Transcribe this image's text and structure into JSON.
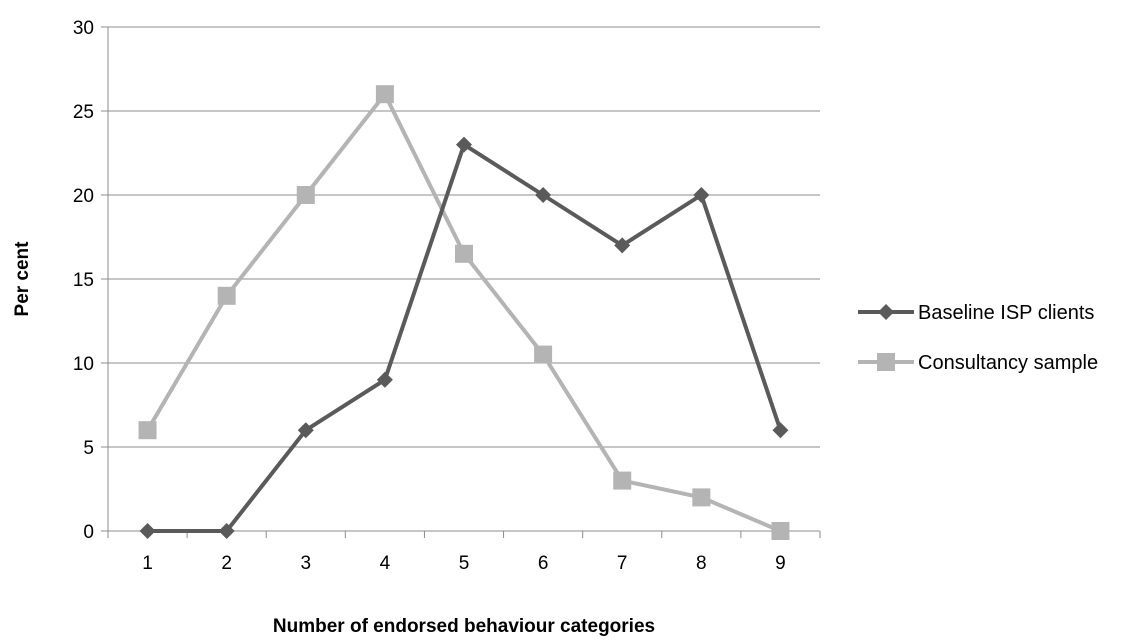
{
  "chart_data": {
    "type": "line",
    "xlabel": "Number of endorsed behaviour categories",
    "ylabel": "Per cent",
    "categories": [
      "1",
      "2",
      "3",
      "4",
      "5",
      "6",
      "7",
      "8",
      "9"
    ],
    "ylim": [
      0,
      30
    ],
    "yticks": [
      "0",
      "5",
      "10",
      "15",
      "20",
      "25",
      "30"
    ],
    "grid": "horizontal",
    "legend": "right",
    "series": [
      {
        "name": "Baseline ISP clients",
        "color": "#5a5a5a",
        "marker": "diamond",
        "values": [
          0,
          0,
          6,
          9,
          23,
          20,
          17,
          20,
          6
        ]
      },
      {
        "name": "Consultancy sample",
        "color": "#b4b4b4",
        "marker": "square",
        "values": [
          6,
          14,
          20,
          26,
          16.5,
          10.5,
          3,
          2,
          0
        ]
      }
    ]
  }
}
